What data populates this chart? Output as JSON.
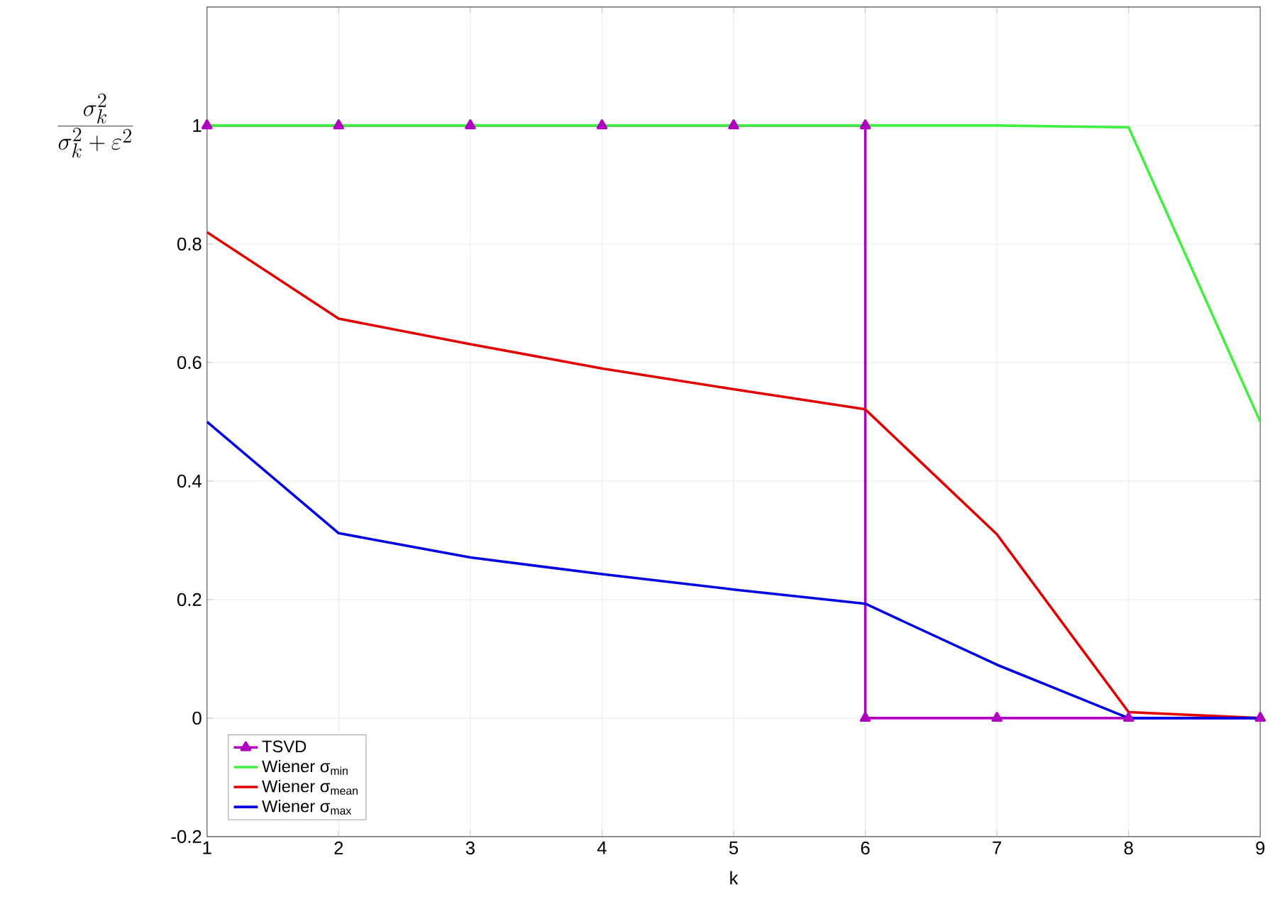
{
  "chart_data": {
    "type": "line",
    "xlabel": "k",
    "ylabel": "\\frac{\\sigma_k^2}{\\sigma_k^2+\\varepsilon^2}",
    "x": [
      1,
      2,
      3,
      4,
      5,
      6,
      7,
      8,
      9
    ],
    "series": [
      {
        "name": "TSVD",
        "color": "#b000c0",
        "marker": "triangle",
        "x": [
          1,
          2,
          3,
          4,
          5,
          6,
          6,
          7,
          8,
          9
        ],
        "values": [
          1,
          1,
          1,
          1,
          1,
          1,
          0,
          0,
          0,
          0
        ]
      },
      {
        "name": "Wiener σ$_{min}$",
        "color": "#40f040",
        "values": [
          1,
          1,
          1,
          1,
          1,
          1,
          1,
          0.997,
          0.5
        ]
      },
      {
        "name": "Wiener σ$_{mean}$",
        "color": "#e00000",
        "values": [
          0.82,
          0.674,
          0.631,
          0.59,
          0.555,
          0.521,
          0.31,
          0.01,
          0
        ]
      },
      {
        "name": "Wiener σ$_{max}$",
        "color": "#0000e0",
        "values": [
          0.5,
          0.312,
          0.271,
          0.243,
          0.217,
          0.193,
          0.09,
          0,
          0
        ]
      }
    ],
    "xlim": [
      1,
      9
    ],
    "ylim": [
      -0.2,
      1.2
    ],
    "xticks": [
      1,
      2,
      3,
      4,
      5,
      6,
      7,
      8,
      9
    ],
    "yticks": [
      -0.2,
      0,
      0.2,
      0.4,
      0.6,
      0.8,
      1
    ],
    "grid": true,
    "legend": "bottom left",
    "line_style": "solid"
  }
}
